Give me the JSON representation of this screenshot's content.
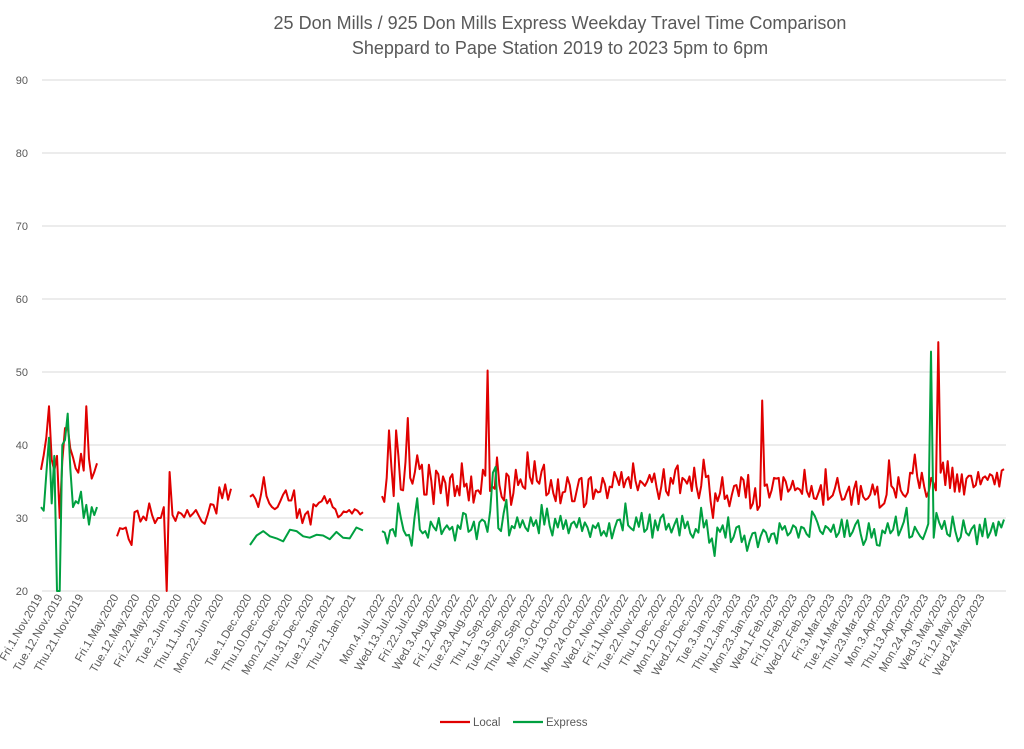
{
  "chart_data": {
    "type": "line",
    "title_line1": "25 Don Mills / 925 Don Mills Express Weekday Travel Time Comparison",
    "title_line2": "Sheppard to Pape Station 2019 to 2023 5pm to 6pm",
    "xlabel": "",
    "ylabel": "",
    "ylim": [
      20,
      90
    ],
    "yticks": [
      20,
      30,
      40,
      50,
      60,
      70,
      80,
      90
    ],
    "grid": true,
    "legend": "bottom",
    "colors": {
      "Local": "#e00000",
      "Express": "#00a040"
    },
    "x_tick_labels": [
      "Fri.1.Nov.2019",
      "Tue.12.Nov.2019",
      "Thu.21.Nov.2019",
      "Fri.1.May.2020",
      "Tue.12.May.2020",
      "Fri.22.May.2020",
      "Tue.2.Jun.2020",
      "Thu.11.Jun.2020",
      "Mon.22.Jun.2020",
      "Tue.1.Dec.2020",
      "Thu.10.Dec.2020",
      "Mon.21.Dec.2020",
      "Thu.31.Dec.2020",
      "Tue.12.Jan.2021",
      "Thu.21.Jan.2021",
      "Mon.4.Jul.2022",
      "Wed.13.Jul.2022",
      "Fri.22.Jul.2022",
      "Wed.3.Aug.2022",
      "Fri.12.Aug.2022",
      "Tue.23.Aug.2022",
      "Thu.1.Sep.2022",
      "Tue.13.Sep.2022",
      "Thu.22.Sep.2022",
      "Mon.3.Oct.2022",
      "Thu.13.Oct.2022",
      "Mon.24.Oct.2022",
      "Wed.2.Nov.2022",
      "Fri.11.Nov.2022",
      "Tue.22.Nov.2022",
      "Thu.1.Dec.2022",
      "Mon.12.Dec.2022",
      "Wed.21.Dec.2022",
      "Tue.3.Jan.2023",
      "Thu.12.Jan.2023",
      "Mon.23.Jan.2023",
      "Wed.1.Feb.2023",
      "Fri.10.Feb.2023",
      "Wed.22.Feb.2023",
      "Fri.3.Mar.2023",
      "Tue.14.Mar.2023",
      "Thu.23.Mar.2023",
      "Mon.3.Apr.2023",
      "Thu.13.Apr.2023",
      "Mon.24.Apr.2023",
      "Wed.3.May.2023",
      "Fri.12.May.2023",
      "Wed.24.May.2023"
    ],
    "series": [
      {
        "name": "Local",
        "segments": [
          [
            36.6,
            38.6,
            41,
            45.3,
            38,
            36.5,
            38.5,
            30,
            37.8,
            42.3,
            42.5,
            39.5,
            38.3,
            36.8,
            36.2,
            38.8,
            36.5,
            45.3,
            38.1,
            35.4,
            36.3,
            37.5
          ],
          [
            27.5,
            28.6,
            28.5,
            28.7,
            27.1,
            26.3,
            30.8,
            31,
            29.5,
            30.2,
            29.7,
            32,
            30.4,
            29.3,
            30,
            30,
            31.5,
            20,
            36.3,
            30.4,
            29.6,
            30.8,
            30.6,
            30.1,
            31.1,
            30.2,
            30.6,
            31.1,
            30.3,
            29.5,
            29.2,
            30.4,
            31.9,
            31.8,
            30.6,
            34.2,
            32.7,
            34.6,
            32.5,
            34
          ],
          [
            32.9,
            33.2,
            32.6,
            31.5,
            33.2,
            35.6,
            33,
            32,
            31.5,
            31.2,
            31.5,
            32.3,
            33.2,
            33.8,
            32.4,
            32.4,
            33.8,
            30,
            31.2,
            29.3,
            30.5,
            30.9,
            29.1,
            31.9,
            31.6,
            32.1,
            32.3,
            33,
            32,
            32.6,
            31.5,
            31.2,
            30.1,
            30.4,
            30.9,
            30.8,
            31.1,
            30.6,
            31.2,
            31,
            30.5,
            30.8
          ],
          [
            33,
            32.2,
            35.5,
            42,
            37,
            33,
            42,
            38.5,
            33.9,
            33.8,
            37.7,
            43.7,
            35.5,
            34.7,
            36.3,
            38.6,
            36.7,
            37.3,
            33.2,
            33.2,
            37.3,
            35.1,
            31.9,
            36.5,
            36,
            33.4,
            35.7,
            34.8,
            31.7,
            35.5,
            36,
            33,
            34.4,
            33.1,
            37.5,
            34.3,
            34.7,
            32.4,
            35.7,
            32.1,
            33.7,
            33.8,
            33.3,
            36.6,
            35.8,
            50.2,
            33.7,
            34.3,
            34,
            38.3,
            34.5,
            32.9,
            32.4,
            36.1,
            35.7,
            31.8,
            33.4,
            36.6,
            34.5,
            35.3,
            34.3,
            34,
            39,
            35.6,
            34.7,
            37.8,
            35.1,
            34.7,
            36.4,
            37.3,
            33.1,
            33.4,
            35.2,
            33.4,
            32.3,
            35.3,
            32,
            33.5,
            33.6,
            35.6,
            34.5,
            32.3,
            32.3,
            33.8,
            35.3,
            35.5,
            31.5,
            32,
            35.3,
            35.6,
            32.6,
            33.9,
            33.5,
            33.6,
            35.5,
            34.6,
            32.7,
            34.3,
            34.2,
            36.3,
            35.5,
            34.5,
            36.3,
            34.2,
            35.2,
            35.6,
            34.1,
            37.5,
            35.1,
            33.8,
            35.1,
            34.8,
            34.4,
            35,
            35.9,
            34.9,
            36.1,
            34.2,
            32.6,
            34.3,
            36.7,
            33.7,
            33.1,
            35.5,
            34.7,
            36.6,
            37.2,
            33.4,
            35.5,
            35.2,
            34.7,
            35.7,
            33.7,
            36.9,
            34.3,
            32.7,
            34.4,
            38,
            35.6,
            35.8,
            32.3,
            30,
            33.4,
            32.3,
            33.4,
            35.6,
            32.6,
            33.1,
            31.6,
            33.1,
            34.4,
            34.5,
            33,
            35.6,
            35.2,
            32.8,
            35.9,
            31.3,
            32,
            34.1,
            31.1,
            31.7,
            46.1,
            34.4,
            34.6,
            32.8,
            33.8,
            35.5,
            35.4,
            35.5,
            32.5,
            35.6,
            35,
            33.6,
            34,
            35.1,
            33.8,
            34.1,
            33.9,
            33.3,
            36.6,
            33.7,
            32.9,
            34.4,
            32.7,
            32.6,
            33.5,
            34.5,
            31.8,
            36.7,
            32.5,
            32.8,
            33.1,
            34.1,
            35.5,
            33.7,
            32.5,
            32.6,
            33.5,
            34.3,
            31.8,
            33.9,
            35,
            31.9,
            34.4,
            32.9,
            32.5,
            32.7,
            33.2,
            34.6,
            33.2,
            34.3,
            31.4,
            31.7,
            32,
            33.2,
            37.9,
            34.4,
            34,
            32.8,
            35.6,
            33.8,
            33.2,
            32.9,
            33.5,
            36.2,
            36.1,
            38.7,
            35.7,
            34.1,
            36.2,
            34.3,
            32.9,
            33.7,
            35.5,
            34.8,
            33.8,
            54.1,
            36.2,
            37.6,
            34.5,
            37.8,
            34.1,
            36.9,
            33.6,
            36,
            33.6,
            36,
            33.2,
            35.4,
            35.8,
            35.8,
            34.2,
            34.5,
            36.3,
            34.6,
            35.5,
            35.7,
            35.2,
            36,
            35.8,
            34.6,
            36.2,
            34.3,
            36.5,
            36.7
          ]
        ]
      },
      {
        "name": "Express",
        "segments": [
          [
            31.5,
            31,
            36,
            41,
            32,
            38.5,
            20,
            20,
            40,
            40.7,
            44.3,
            36.8,
            31.5,
            32.3,
            32,
            33.6,
            30,
            31.8,
            29.1,
            31.5,
            30.4,
            31.5
          ],
          [],
          [
            26.3,
            27.6,
            28.2,
            27.5,
            27.2,
            26.8,
            28.4,
            28.2,
            27.5,
            27.3,
            27.7,
            27.6,
            27.1,
            28.1,
            27.3,
            27.2,
            28.7,
            28.3
          ],
          [
            28.2,
            28,
            26.5,
            28.3,
            28.5,
            27.5,
            32,
            30,
            28.3,
            27.6,
            27.7,
            26.2,
            30,
            32.7,
            28.4,
            27.9,
            28.2,
            27.3,
            29.5,
            28.8,
            28.3,
            30,
            27.8,
            28.5,
            29,
            28.4,
            28.8,
            26.9,
            29,
            28.5,
            30.7,
            30.5,
            28.1,
            28.4,
            29.5,
            27.1,
            29.4,
            29.8,
            29.5,
            28.1,
            31,
            36.2,
            37,
            28.6,
            28.2,
            30.7,
            32.5,
            27.6,
            28.9,
            28.6,
            30.1,
            28.7,
            29.7,
            28.7,
            28.2,
            30.1,
            28.9,
            29.7,
            27.9,
            31.8,
            29.1,
            31.3,
            28.9,
            27.6,
            29.9,
            28.7,
            30.3,
            28.5,
            29.7,
            27.9,
            29.2,
            29.5,
            28.7,
            30,
            28.2,
            29.4,
            28.7,
            27.4,
            29,
            28.6,
            29.3,
            27.6,
            28.2,
            27.5,
            29.3,
            27.2,
            28.6,
            29.7,
            29.8,
            28.3,
            32,
            29,
            28.6,
            28.3,
            30.1,
            28.8,
            30.7,
            28.1,
            28.5,
            30.5,
            27.3,
            29.7,
            28.3,
            30,
            30.5,
            28.4,
            29.2,
            28,
            29,
            29.9,
            27.6,
            30.3,
            28.6,
            29.5,
            27.9,
            27.3,
            28.5,
            28,
            31.4,
            28.7,
            29.7,
            26.6,
            27.2,
            24.8,
            28.7,
            28.1,
            29,
            27.3,
            30.1,
            26.7,
            27.4,
            28.7,
            28.9,
            26.7,
            27.6,
            25.5,
            26.9,
            27.9,
            28,
            26,
            27.5,
            28.4,
            28,
            26.7,
            27.8,
            27.9,
            26.5,
            29.3,
            28.4,
            28.9,
            27.6,
            28,
            29,
            28.7,
            27.3,
            28.8,
            28.6,
            27.8,
            27.4,
            30.9,
            30.3,
            29.4,
            28.2,
            27.8,
            28.9,
            28.6,
            28.1,
            29.1,
            27.4,
            28,
            29.8,
            27.4,
            29.7,
            27.5,
            28.1,
            29.1,
            29.7,
            27.8,
            26.3,
            27.1,
            29.3,
            27.3,
            28.5,
            26.3,
            26.2,
            28.3,
            27.9,
            29.3,
            27.9,
            28.4,
            30.2,
            27.6,
            28.5,
            29.5,
            31.4,
            27.3,
            27.5,
            28.8,
            28.1,
            27.5,
            27.1,
            28.1,
            29.2,
            52.8,
            27.3,
            30.7,
            29.4,
            28.5,
            29.6,
            27.8,
            27.5,
            30.2,
            28.2,
            26.8,
            27.4,
            29.7,
            28,
            27.6,
            28.5,
            29,
            26.4,
            29.1,
            27.5,
            29.9,
            27.3,
            28.1,
            29.3,
            27.6,
            29.5,
            28.7,
            29.8
          ]
        ]
      }
    ]
  }
}
